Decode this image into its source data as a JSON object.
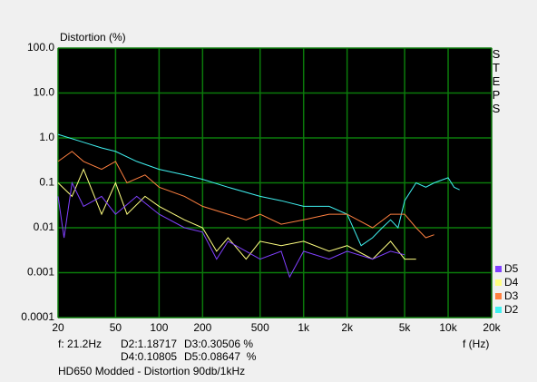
{
  "chart_data": {
    "type": "line",
    "title": "Distortion (%)",
    "xlabel": "f (Hz)",
    "side_label": "STEPS",
    "footer": "HD650 Modded - Distortion 90db/1kHz",
    "readout": [
      "f: 21.2Hz",
      "D2:1.18717",
      "D3:0.30506 %",
      "D4:0.10805",
      "D5:0.08647  %"
    ],
    "xscale": "log",
    "yscale": "log",
    "grid": true,
    "legend": "lower right",
    "background": "#000000",
    "grid_color": "#0b7a0b",
    "xlim": [
      20,
      20000
    ],
    "xticks": [
      20,
      50,
      100,
      200,
      500,
      {
        "value": 1000,
        "label": "1k"
      },
      {
        "value": 2000,
        "label": "2k"
      },
      {
        "value": 5000,
        "label": "5k"
      },
      {
        "value": 10000,
        "label": "10k"
      },
      {
        "value": 20000,
        "label": "20k"
      }
    ],
    "ylim": [
      0.0001,
      100
    ],
    "yticks": [
      {
        "value": 100,
        "label": "100.0"
      },
      {
        "value": 10,
        "label": "10.0"
      },
      {
        "value": 1,
        "label": "1.0"
      },
      0.1,
      0.01,
      0.001,
      0.0001
    ],
    "series": [
      {
        "name": "D2",
        "color": "#40f0f0",
        "x": [
          20,
          30,
          40,
          50,
          70,
          100,
          150,
          200,
          300,
          500,
          700,
          1000,
          1500,
          2000,
          2500,
          3000,
          3500,
          4000,
          4500,
          5000,
          6000,
          7000,
          8000,
          10000,
          11000,
          12000
        ],
        "values": [
          1.2,
          0.8,
          0.6,
          0.5,
          0.3,
          0.2,
          0.15,
          0.12,
          0.08,
          0.05,
          0.04,
          0.03,
          0.03,
          0.02,
          0.004,
          0.006,
          0.01,
          0.015,
          0.01,
          0.04,
          0.1,
          0.08,
          0.1,
          0.13,
          0.08,
          0.07
        ]
      },
      {
        "name": "D3",
        "color": "#ff8040",
        "x": [
          20,
          25,
          30,
          40,
          50,
          60,
          80,
          100,
          150,
          200,
          300,
          400,
          500,
          700,
          1000,
          1500,
          2000,
          3000,
          4000,
          5000,
          6000,
          7000,
          8000
        ],
        "values": [
          0.3,
          0.5,
          0.3,
          0.2,
          0.3,
          0.1,
          0.15,
          0.08,
          0.05,
          0.03,
          0.02,
          0.015,
          0.02,
          0.012,
          0.015,
          0.02,
          0.02,
          0.01,
          0.02,
          0.02,
          0.01,
          0.006,
          0.007
        ]
      },
      {
        "name": "D4",
        "color": "#ffff80",
        "x": [
          20,
          25,
          30,
          40,
          50,
          60,
          80,
          100,
          150,
          200,
          250,
          300,
          400,
          500,
          700,
          1000,
          1500,
          2000,
          3000,
          4000,
          5000,
          6000
        ],
        "values": [
          0.1,
          0.05,
          0.2,
          0.02,
          0.1,
          0.02,
          0.05,
          0.03,
          0.015,
          0.01,
          0.003,
          0.006,
          0.002,
          0.005,
          0.004,
          0.005,
          0.003,
          0.004,
          0.002,
          0.005,
          0.002,
          0.002
        ]
      },
      {
        "name": "D5",
        "color": "#8040ff",
        "x": [
          20,
          22,
          25,
          30,
          40,
          50,
          70,
          100,
          150,
          200,
          250,
          300,
          400,
          500,
          700,
          800,
          1000,
          1500,
          2000,
          3000,
          4000,
          5000
        ],
        "values": [
          0.05,
          0.006,
          0.1,
          0.03,
          0.05,
          0.02,
          0.05,
          0.02,
          0.01,
          0.008,
          0.002,
          0.005,
          0.003,
          0.002,
          0.003,
          0.0008,
          0.003,
          0.002,
          0.003,
          0.002,
          0.003,
          0.0025
        ]
      }
    ]
  }
}
